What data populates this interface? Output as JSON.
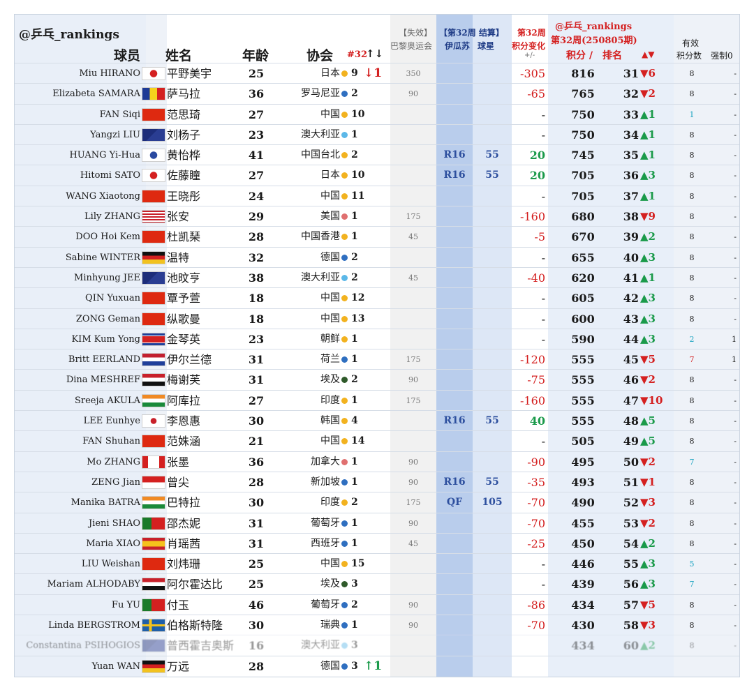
{
  "title": "@乒乓_rankings",
  "headers": {
    "player": "球员",
    "name": "姓名",
    "age": "年龄",
    "assoc": "协会",
    "rank32": "#32",
    "rank32_arrows": "↑↓",
    "paris_top": "【失效】",
    "paris_bottom": "巴黎奥运会",
    "week_top": "【第32周 结算】",
    "week_result": "伊瓜苏",
    "week_points": "球星",
    "change_top": "第32周",
    "change_mid": "积分变化",
    "change_bottom": "+/-",
    "main_top": "@乒乓_rankings",
    "main_mid": "第32周(250805期)",
    "points": "积分 /",
    "rank": "排名",
    "rank_arrows": "▲▼",
    "eff_top": "有效",
    "eff": "积分数",
    "forced": "强制0"
  },
  "colors": {
    "up": "#1a9a4a",
    "down": "#d42020",
    "result_band": "#b9cdec",
    "accent_blue": "#2d4f9e"
  },
  "rows": [
    {
      "en": "Miu HIRANO",
      "flag": "japan-flag",
      "cn": "平野美宇",
      "age": "25",
      "assoc": "日本",
      "dot": "#f2b21f",
      "r32": "9",
      "mv": "↓1",
      "mv_dir": "down",
      "paris": "350",
      "res": "",
      "rpts": "",
      "chg": "-305",
      "chg_type": "red",
      "pts": "816",
      "rank": "31",
      "move": "▼6",
      "move_dir": "down",
      "eff": "8",
      "eff_type": "",
      "forced": "-"
    },
    {
      "en": "Elizabeta SAMARA",
      "flag": "romania-flag",
      "cn": "萨马拉",
      "age": "36",
      "assoc": "罗马尼亚",
      "dot": "#2f6fc0",
      "r32": "2",
      "mv": "",
      "mv_dir": "",
      "paris": "90",
      "res": "",
      "rpts": "",
      "chg": "-65",
      "chg_type": "red",
      "pts": "765",
      "rank": "32",
      "move": "▼2",
      "move_dir": "down",
      "eff": "8",
      "eff_type": "",
      "forced": "-"
    },
    {
      "en": "FAN Siqi",
      "flag": "china-flag",
      "cn": "范思琦",
      "age": "27",
      "assoc": "中国",
      "dot": "#f2b21f",
      "r32": "10",
      "mv": "",
      "mv_dir": "",
      "paris": "",
      "res": "",
      "rpts": "",
      "chg": "-",
      "chg_type": "",
      "pts": "750",
      "rank": "33",
      "move": "▲1",
      "move_dir": "up",
      "eff": "1",
      "eff_type": "teal",
      "forced": "-"
    },
    {
      "en": "Yangzi LIU",
      "flag": "australia-flag",
      "cn": "刘杨子",
      "age": "23",
      "assoc": "澳大利亚",
      "dot": "#5cb8e8",
      "r32": "1",
      "mv": "",
      "mv_dir": "",
      "paris": "",
      "res": "",
      "rpts": "",
      "chg": "-",
      "chg_type": "",
      "pts": "750",
      "rank": "34",
      "move": "▲1",
      "move_dir": "up",
      "eff": "8",
      "eff_type": "",
      "forced": "-"
    },
    {
      "en": "HUANG Yi-Hua",
      "flag": "chinese-taipei-flag",
      "cn": "黄怡桦",
      "age": "41",
      "assoc": "中国台北",
      "dot": "#f2b21f",
      "r32": "2",
      "mv": "",
      "mv_dir": "",
      "paris": "",
      "res": "R16",
      "rpts": "55",
      "chg": "20",
      "chg_type": "green",
      "pts": "745",
      "rank": "35",
      "move": "▲1",
      "move_dir": "up",
      "eff": "8",
      "eff_type": "",
      "forced": "-"
    },
    {
      "en": "Hitomi SATO",
      "flag": "japan-flag",
      "cn": "佐藤瞳",
      "age": "27",
      "assoc": "日本",
      "dot": "#f2b21f",
      "r32": "10",
      "mv": "",
      "mv_dir": "",
      "paris": "",
      "res": "R16",
      "rpts": "55",
      "chg": "20",
      "chg_type": "green",
      "pts": "705",
      "rank": "36",
      "move": "▲3",
      "move_dir": "up",
      "eff": "8",
      "eff_type": "",
      "forced": "-"
    },
    {
      "en": "WANG Xiaotong",
      "flag": "china-flag",
      "cn": "王晓彤",
      "age": "24",
      "assoc": "中国",
      "dot": "#f2b21f",
      "r32": "11",
      "mv": "",
      "mv_dir": "",
      "paris": "",
      "res": "",
      "rpts": "",
      "chg": "-",
      "chg_type": "",
      "pts": "705",
      "rank": "37",
      "move": "▲1",
      "move_dir": "up",
      "eff": "8",
      "eff_type": "",
      "forced": "-"
    },
    {
      "en": "Lily ZHANG",
      "flag": "usa-flag",
      "cn": "张安",
      "age": "29",
      "assoc": "美国",
      "dot": "#e07070",
      "r32": "1",
      "mv": "",
      "mv_dir": "",
      "paris": "175",
      "res": "",
      "rpts": "",
      "chg": "-160",
      "chg_type": "red",
      "pts": "680",
      "rank": "38",
      "move": "▼9",
      "move_dir": "down",
      "eff": "8",
      "eff_type": "",
      "forced": "-"
    },
    {
      "en": "DOO Hoi Kem",
      "flag": "hong-kong-flag",
      "cn": "杜凯琹",
      "age": "28",
      "assoc": "中国香港",
      "dot": "#f2b21f",
      "r32": "1",
      "mv": "",
      "mv_dir": "",
      "paris": "45",
      "res": "",
      "rpts": "",
      "chg": "-5",
      "chg_type": "red",
      "pts": "670",
      "rank": "39",
      "move": "▲2",
      "move_dir": "up",
      "eff": "8",
      "eff_type": "",
      "forced": "-"
    },
    {
      "en": "Sabine WINTER",
      "flag": "germany-flag",
      "cn": "温特",
      "age": "32",
      "assoc": "德国",
      "dot": "#2f6fc0",
      "r32": "2",
      "mv": "",
      "mv_dir": "",
      "paris": "",
      "res": "",
      "rpts": "",
      "chg": "-",
      "chg_type": "",
      "pts": "655",
      "rank": "40",
      "move": "▲3",
      "move_dir": "up",
      "eff": "8",
      "eff_type": "",
      "forced": "-"
    },
    {
      "en": "Minhyung JEE",
      "flag": "australia-flag",
      "cn": "池旼亨",
      "age": "38",
      "assoc": "澳大利亚",
      "dot": "#5cb8e8",
      "r32": "2",
      "mv": "",
      "mv_dir": "",
      "paris": "45",
      "res": "",
      "rpts": "",
      "chg": "-40",
      "chg_type": "red",
      "pts": "620",
      "rank": "41",
      "move": "▲1",
      "move_dir": "up",
      "eff": "8",
      "eff_type": "",
      "forced": "-"
    },
    {
      "en": "QIN Yuxuan",
      "flag": "china-flag",
      "cn": "覃予萱",
      "age": "18",
      "assoc": "中国",
      "dot": "#f2b21f",
      "r32": "12",
      "mv": "",
      "mv_dir": "",
      "paris": "",
      "res": "",
      "rpts": "",
      "chg": "-",
      "chg_type": "",
      "pts": "605",
      "rank": "42",
      "move": "▲3",
      "move_dir": "up",
      "eff": "8",
      "eff_type": "",
      "forced": "-"
    },
    {
      "en": "ZONG Geman",
      "flag": "china-flag",
      "cn": "纵歌曼",
      "age": "18",
      "assoc": "中国",
      "dot": "#f2b21f",
      "r32": "13",
      "mv": "",
      "mv_dir": "",
      "paris": "",
      "res": "",
      "rpts": "",
      "chg": "-",
      "chg_type": "",
      "pts": "600",
      "rank": "43",
      "move": "▲3",
      "move_dir": "up",
      "eff": "8",
      "eff_type": "",
      "forced": "-"
    },
    {
      "en": "KIM Kum Yong",
      "flag": "north-korea-flag",
      "cn": "金琴英",
      "age": "23",
      "assoc": "朝鲜",
      "dot": "#f2b21f",
      "r32": "1",
      "mv": "",
      "mv_dir": "",
      "paris": "",
      "res": "",
      "rpts": "",
      "chg": "-",
      "chg_type": "",
      "pts": "590",
      "rank": "44",
      "move": "▲3",
      "move_dir": "up",
      "eff": "2",
      "eff_type": "teal",
      "forced": "1"
    },
    {
      "en": "Britt EERLAND",
      "flag": "netherlands-flag",
      "cn": "伊尔兰德",
      "age": "31",
      "assoc": "荷兰",
      "dot": "#2f6fc0",
      "r32": "1",
      "mv": "",
      "mv_dir": "",
      "paris": "175",
      "res": "",
      "rpts": "",
      "chg": "-120",
      "chg_type": "red",
      "pts": "555",
      "rank": "45",
      "move": "▼5",
      "move_dir": "down",
      "eff": "7",
      "eff_type": "red",
      "forced": "1"
    },
    {
      "en": "Dina MESHREF",
      "flag": "egypt-flag",
      "cn": "梅谢芙",
      "age": "31",
      "assoc": "埃及",
      "dot": "#2f5a2a",
      "r32": "2",
      "mv": "",
      "mv_dir": "",
      "paris": "90",
      "res": "",
      "rpts": "",
      "chg": "-75",
      "chg_type": "red",
      "pts": "555",
      "rank": "46",
      "move": "▼2",
      "move_dir": "down",
      "eff": "8",
      "eff_type": "",
      "forced": "-"
    },
    {
      "en": "Sreeja AKULA",
      "flag": "india-flag",
      "cn": "阿库拉",
      "age": "27",
      "assoc": "印度",
      "dot": "#f2b21f",
      "r32": "1",
      "mv": "",
      "mv_dir": "",
      "paris": "175",
      "res": "",
      "rpts": "",
      "chg": "-160",
      "chg_type": "red",
      "pts": "555",
      "rank": "47",
      "move": "▼10",
      "move_dir": "down",
      "eff": "8",
      "eff_type": "",
      "forced": "-"
    },
    {
      "en": "LEE Eunhye",
      "flag": "korea-flag",
      "cn": "李恩惠",
      "age": "30",
      "assoc": "韩国",
      "dot": "#f2b21f",
      "r32": "4",
      "mv": "",
      "mv_dir": "",
      "paris": "",
      "res": "R16",
      "rpts": "55",
      "chg": "40",
      "chg_type": "green",
      "pts": "555",
      "rank": "48",
      "move": "▲5",
      "move_dir": "up",
      "eff": "8",
      "eff_type": "",
      "forced": "-"
    },
    {
      "en": "FAN Shuhan",
      "flag": "china-flag",
      "cn": "范姝涵",
      "age": "21",
      "assoc": "中国",
      "dot": "#f2b21f",
      "r32": "14",
      "mv": "",
      "mv_dir": "",
      "paris": "",
      "res": "",
      "rpts": "",
      "chg": "-",
      "chg_type": "",
      "pts": "505",
      "rank": "49",
      "move": "▲5",
      "move_dir": "up",
      "eff": "8",
      "eff_type": "",
      "forced": "-"
    },
    {
      "en": "Mo ZHANG",
      "flag": "canada-flag",
      "cn": "张墨",
      "age": "36",
      "assoc": "加拿大",
      "dot": "#e07070",
      "r32": "1",
      "mv": "",
      "mv_dir": "",
      "paris": "90",
      "res": "",
      "rpts": "",
      "chg": "-90",
      "chg_type": "red",
      "pts": "495",
      "rank": "50",
      "move": "▼2",
      "move_dir": "down",
      "eff": "7",
      "eff_type": "teal",
      "forced": "-"
    },
    {
      "en": "ZENG Jian",
      "flag": "singapore-flag",
      "cn": "曾尖",
      "age": "28",
      "assoc": "新加坡",
      "dot": "#2f6fc0",
      "r32": "1",
      "mv": "",
      "mv_dir": "",
      "paris": "90",
      "res": "R16",
      "rpts": "55",
      "chg": "-35",
      "chg_type": "red",
      "pts": "493",
      "rank": "51",
      "move": "▼1",
      "move_dir": "down",
      "eff": "8",
      "eff_type": "",
      "forced": "-"
    },
    {
      "en": "Manika BATRA",
      "flag": "india-flag",
      "cn": "巴特拉",
      "age": "30",
      "assoc": "印度",
      "dot": "#f2b21f",
      "r32": "2",
      "mv": "",
      "mv_dir": "",
      "paris": "175",
      "res": "QF",
      "rpts": "105",
      "chg": "-70",
      "chg_type": "red",
      "pts": "490",
      "rank": "52",
      "move": "▼3",
      "move_dir": "down",
      "eff": "8",
      "eff_type": "",
      "forced": "-"
    },
    {
      "en": "Jieni SHAO",
      "flag": "portugal-flag",
      "cn": "邵杰妮",
      "age": "31",
      "assoc": "葡萄牙",
      "dot": "#2f6fc0",
      "r32": "1",
      "mv": "",
      "mv_dir": "",
      "paris": "90",
      "res": "",
      "rpts": "",
      "chg": "-70",
      "chg_type": "red",
      "pts": "455",
      "rank": "53",
      "move": "▼2",
      "move_dir": "down",
      "eff": "8",
      "eff_type": "",
      "forced": "-"
    },
    {
      "en": "Maria XIAO",
      "flag": "spain-flag",
      "cn": "肖瑶茜",
      "age": "31",
      "assoc": "西班牙",
      "dot": "#2f6fc0",
      "r32": "1",
      "mv": "",
      "mv_dir": "",
      "paris": "45",
      "res": "",
      "rpts": "",
      "chg": "-25",
      "chg_type": "red",
      "pts": "450",
      "rank": "54",
      "move": "▲2",
      "move_dir": "up",
      "eff": "8",
      "eff_type": "",
      "forced": "-"
    },
    {
      "en": "LIU Weishan",
      "flag": "china-flag",
      "cn": "刘炜珊",
      "age": "25",
      "assoc": "中国",
      "dot": "#f2b21f",
      "r32": "15",
      "mv": "",
      "mv_dir": "",
      "paris": "",
      "res": "",
      "rpts": "",
      "chg": "-",
      "chg_type": "",
      "pts": "446",
      "rank": "55",
      "move": "▲3",
      "move_dir": "up",
      "eff": "5",
      "eff_type": "teal",
      "forced": "-"
    },
    {
      "en": "Mariam ALHODABY",
      "flag": "egypt-flag",
      "cn": "阿尔霍达比",
      "age": "25",
      "assoc": "埃及",
      "dot": "#2f5a2a",
      "r32": "3",
      "mv": "",
      "mv_dir": "",
      "paris": "",
      "res": "",
      "rpts": "",
      "chg": "-",
      "chg_type": "",
      "pts": "439",
      "rank": "56",
      "move": "▲3",
      "move_dir": "up",
      "eff": "7",
      "eff_type": "teal",
      "forced": "-"
    },
    {
      "en": "Fu YU",
      "flag": "portugal-flag",
      "cn": "付玉",
      "age": "46",
      "assoc": "葡萄牙",
      "dot": "#2f6fc0",
      "r32": "2",
      "mv": "",
      "mv_dir": "",
      "paris": "90",
      "res": "",
      "rpts": "",
      "chg": "-86",
      "chg_type": "red",
      "pts": "434",
      "rank": "57",
      "move": "▼5",
      "move_dir": "down",
      "eff": "8",
      "eff_type": "",
      "forced": "-"
    },
    {
      "en": "Linda BERGSTROM",
      "flag": "sweden-flag",
      "cn": "伯格斯特隆",
      "age": "30",
      "assoc": "瑞典",
      "dot": "#2f6fc0",
      "r32": "1",
      "mv": "",
      "mv_dir": "",
      "paris": "90",
      "res": "",
      "rpts": "",
      "chg": "-70",
      "chg_type": "red",
      "pts": "430",
      "rank": "58",
      "move": "▼3",
      "move_dir": "down",
      "eff": "8",
      "eff_type": "",
      "forced": "-"
    },
    {
      "en": "Constantina PSIHOGIOS",
      "flag": "australia-flag",
      "cn": "普西霍吉奥斯",
      "age": "16",
      "assoc": "澳大利亚",
      "dot": "#5cb8e8",
      "r32": "3",
      "mv": "",
      "mv_dir": "",
      "paris": "",
      "res": "",
      "rpts": "",
      "chg": "",
      "chg_type": "",
      "pts": "434",
      "rank": "60",
      "move": "▲2",
      "move_dir": "up",
      "eff": "8",
      "eff_type": "",
      "forced": "-",
      "blur": true
    },
    {
      "en": "Yuan WAN",
      "flag": "germany-flag",
      "cn": "万远",
      "age": "28",
      "assoc": "德国",
      "dot": "#2f6fc0",
      "r32": "3",
      "mv": "↑1",
      "mv_dir": "up",
      "paris": "",
      "res": "",
      "rpts": "",
      "chg": "",
      "chg_type": "",
      "pts": "",
      "rank": "",
      "move": "",
      "move_dir": "",
      "eff": "",
      "eff_type": "",
      "forced": ""
    }
  ]
}
